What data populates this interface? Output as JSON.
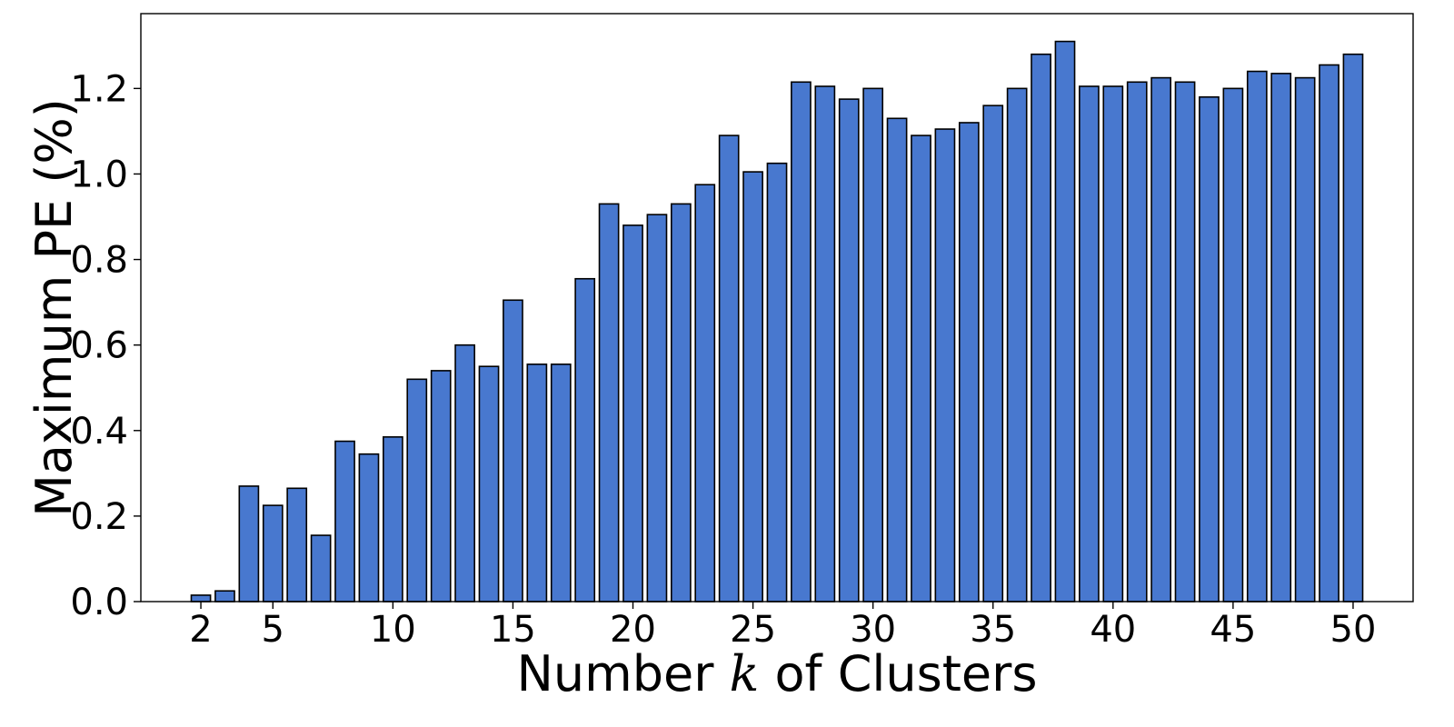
{
  "chart_data": {
    "type": "bar",
    "x": [
      2,
      3,
      4,
      5,
      6,
      7,
      8,
      9,
      10,
      11,
      12,
      13,
      14,
      15,
      16,
      17,
      18,
      19,
      20,
      21,
      22,
      23,
      24,
      25,
      26,
      27,
      28,
      29,
      30,
      31,
      32,
      33,
      34,
      35,
      36,
      37,
      38,
      39,
      40,
      41,
      42,
      43,
      44,
      45,
      46,
      47,
      48,
      49,
      50
    ],
    "values": [
      0.015,
      0.025,
      0.27,
      0.225,
      0.265,
      0.155,
      0.375,
      0.345,
      0.385,
      0.52,
      0.54,
      0.6,
      0.55,
      0.705,
      0.555,
      0.555,
      0.755,
      0.93,
      0.88,
      0.905,
      0.93,
      0.975,
      1.09,
      1.005,
      1.025,
      1.215,
      1.205,
      1.175,
      1.2,
      1.13,
      1.09,
      1.105,
      1.12,
      1.16,
      1.2,
      1.28,
      1.31,
      1.205,
      1.205,
      1.215,
      1.225,
      1.215,
      1.18,
      1.2,
      1.24,
      1.235,
      1.225,
      1.255,
      1.28
    ],
    "xticks": [
      2,
      5,
      10,
      15,
      20,
      25,
      30,
      35,
      40,
      45,
      50
    ],
    "yticks": [
      "0.0",
      "0.2",
      "0.4",
      "0.6",
      "0.8",
      "1.0",
      "1.2"
    ],
    "ylim": [
      0,
      1.375
    ],
    "xlim": [
      -0.5,
      52.5
    ],
    "xlabel": {
      "pre": "Number ",
      "var": "k",
      "post": " of Clusters"
    },
    "ylabel": "Maximum PE (%)",
    "bar_color": "#4878CF",
    "grid": false,
    "legend": "none"
  }
}
